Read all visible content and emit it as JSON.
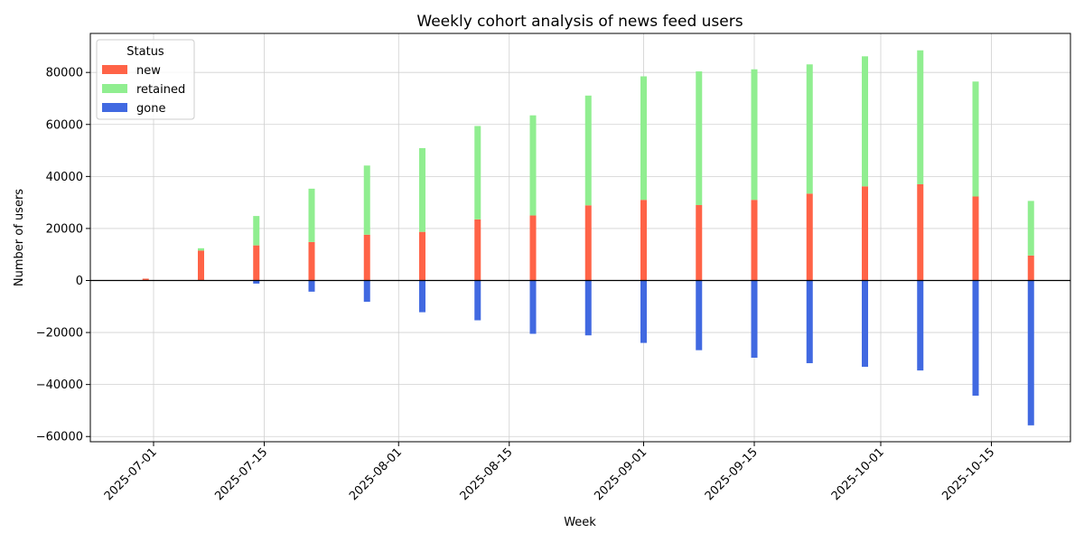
{
  "chart_data": {
    "type": "bar",
    "stacked": true,
    "title": "Weekly cohort analysis of news feed users",
    "xlabel": "Week",
    "ylabel": "Number of users",
    "ylim": [
      -62000,
      95000
    ],
    "xlim": [
      "2025-06-23",
      "2025-10-25"
    ],
    "grid": true,
    "legend": {
      "title": "Status",
      "placement": "top-left"
    },
    "x_ticks": [
      "2025-07-01",
      "2025-07-15",
      "2025-08-01",
      "2025-08-15",
      "2025-09-01",
      "2025-09-15",
      "2025-10-01",
      "2025-10-15"
    ],
    "y_ticks": [
      -60000,
      -40000,
      -20000,
      0,
      20000,
      40000,
      60000,
      80000
    ],
    "x": [
      "2025-06-30",
      "2025-07-07",
      "2025-07-14",
      "2025-07-21",
      "2025-07-28",
      "2025-08-04",
      "2025-08-11",
      "2025-08-18",
      "2025-08-25",
      "2025-09-01",
      "2025-09-08",
      "2025-09-15",
      "2025-09-22",
      "2025-09-29",
      "2025-10-06",
      "2025-10-13",
      "2025-10-20"
    ],
    "series": [
      {
        "name": "new",
        "color": "#ff6347",
        "values": [
          700,
          11500,
          13500,
          14800,
          17600,
          18700,
          23500,
          25000,
          28900,
          31000,
          29000,
          31000,
          33400,
          36200,
          37000,
          32300,
          9600
        ]
      },
      {
        "name": "retained",
        "color": "#90ee90",
        "values": [
          0,
          900,
          11300,
          20500,
          26600,
          32200,
          35900,
          38500,
          42200,
          47500,
          51400,
          50200,
          49700,
          50000,
          51500,
          44200,
          21000
        ]
      },
      {
        "name": "gone",
        "color": "#4169e1",
        "values": [
          0,
          0,
          -1200,
          -4300,
          -8200,
          -12200,
          -15300,
          -20500,
          -21100,
          -24000,
          -26800,
          -29700,
          -31800,
          -33200,
          -34600,
          -44300,
          -55700
        ]
      }
    ]
  }
}
